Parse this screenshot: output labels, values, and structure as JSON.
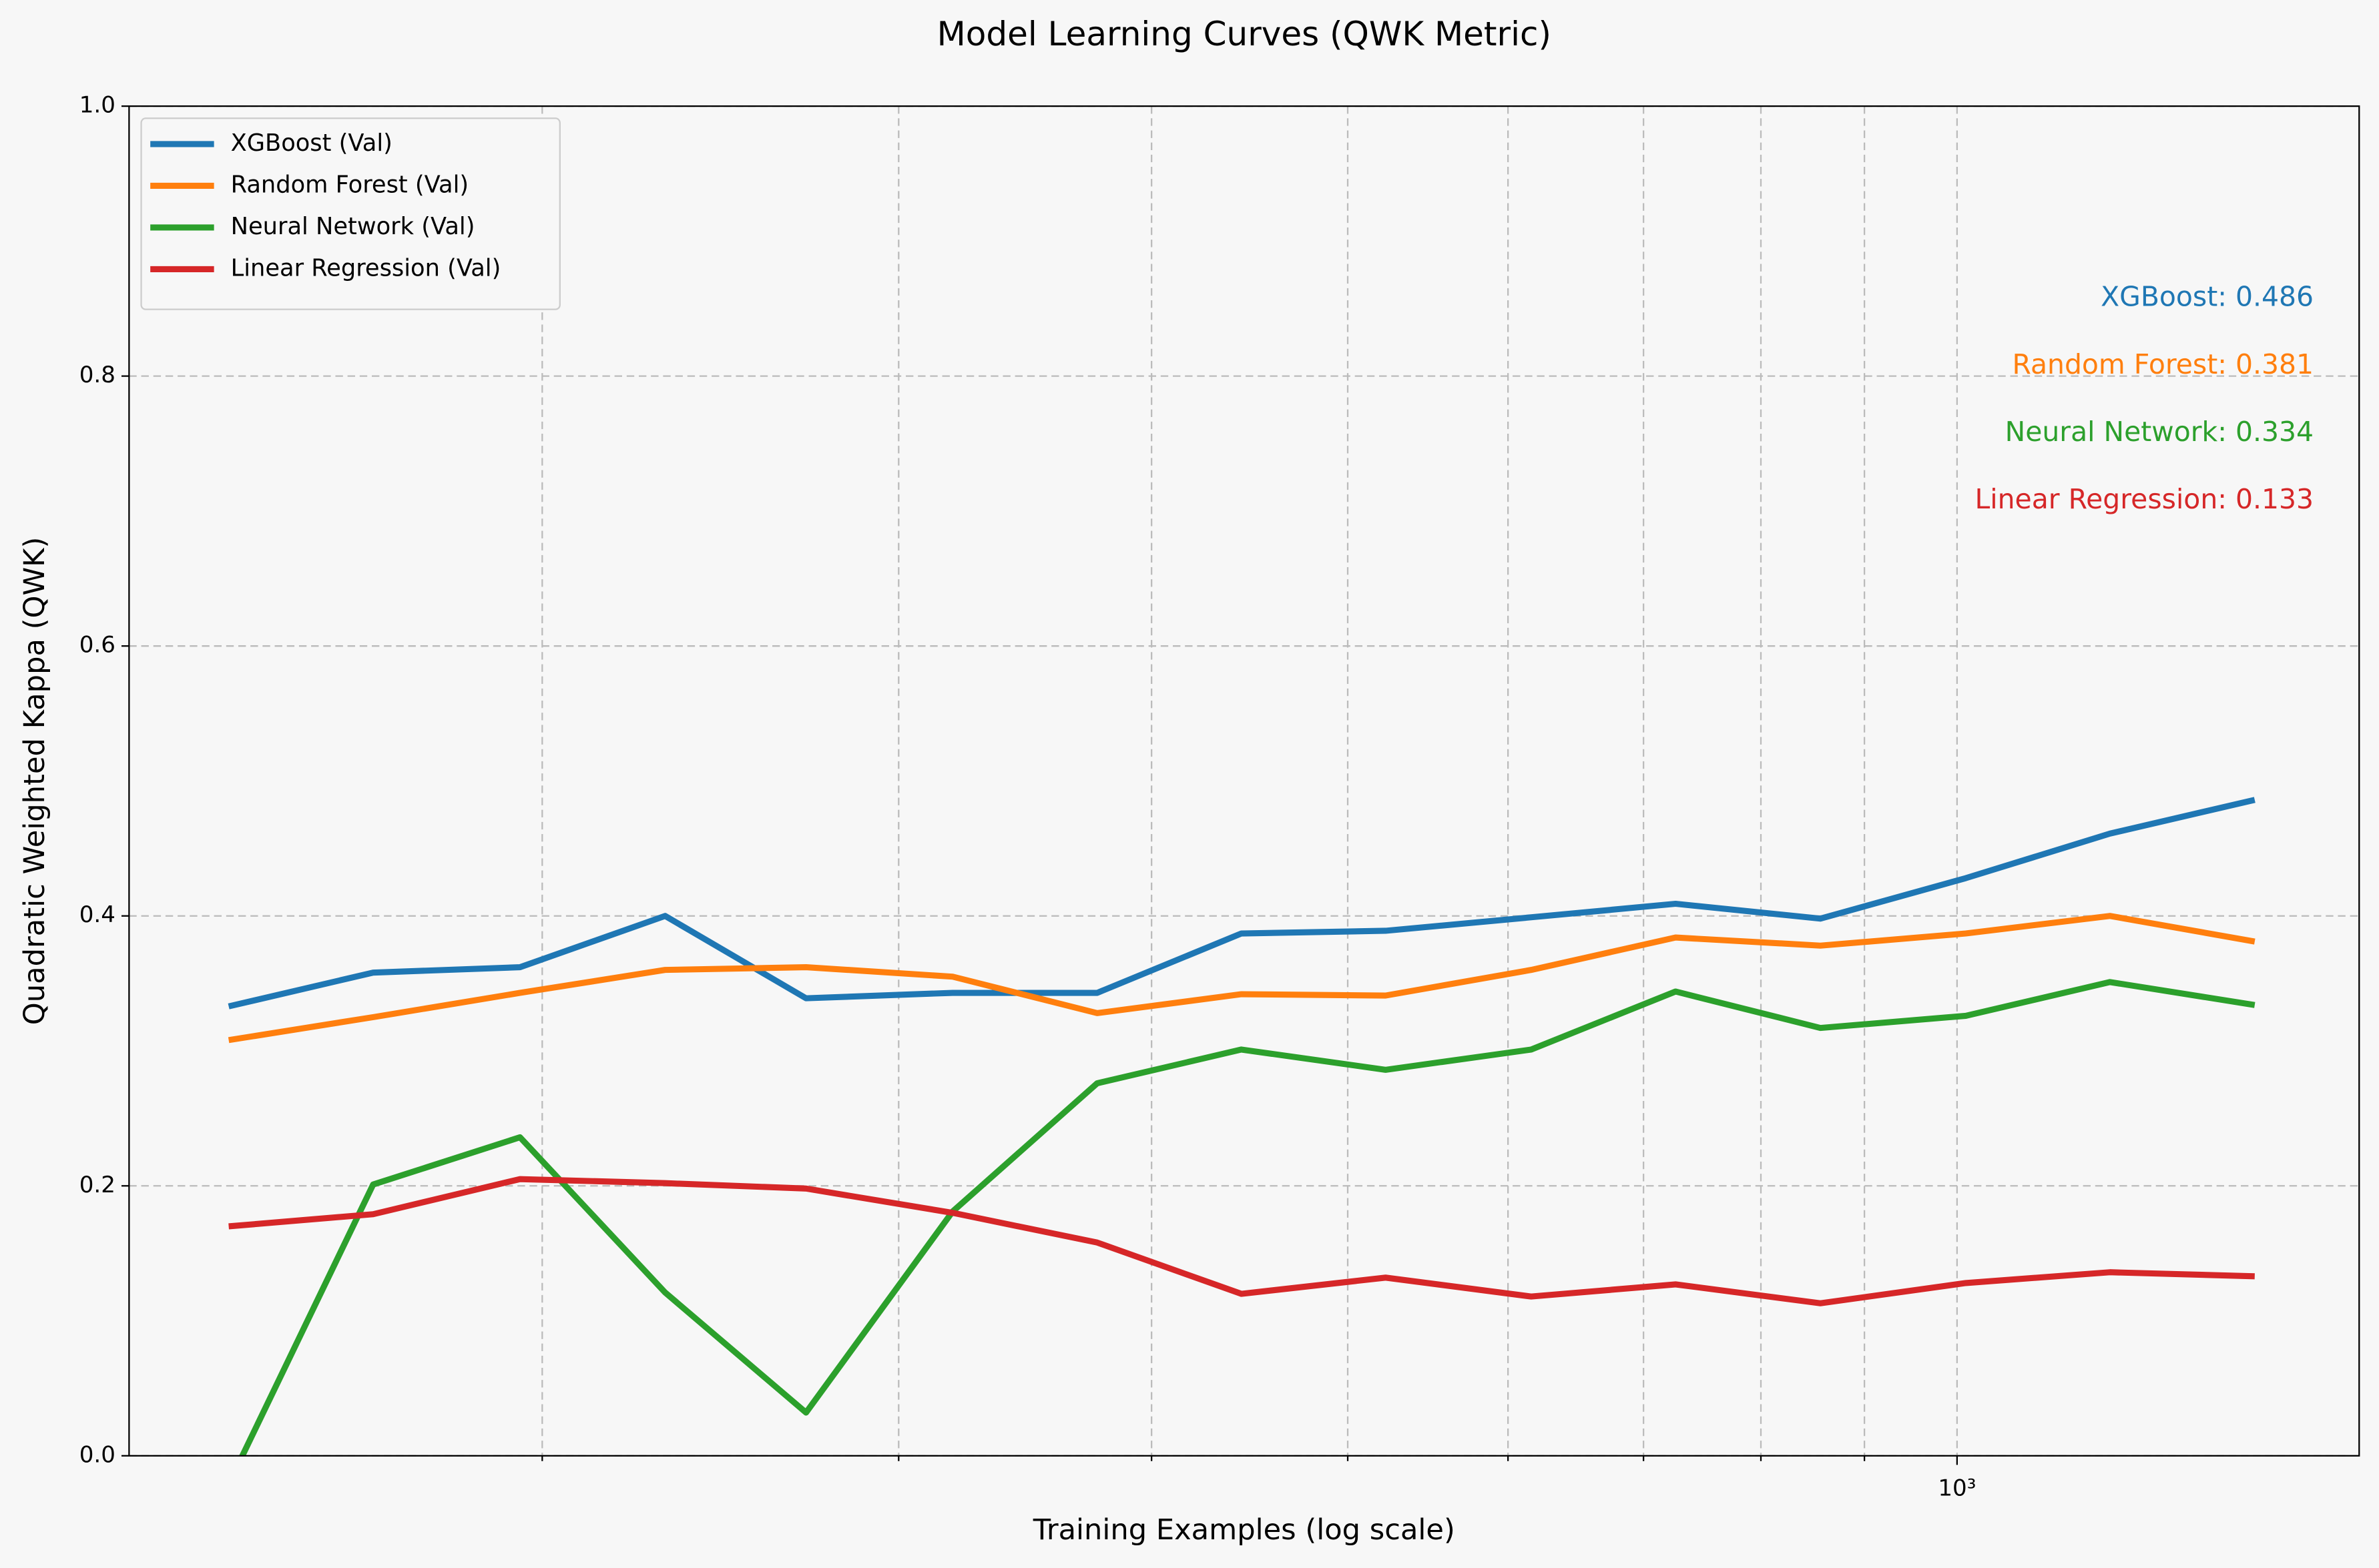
{
  "chart_data": {
    "type": "line",
    "title": "Model Learning Curves (QWK Metric)",
    "xlabel": "Training Examples (log scale)",
    "ylabel": "Quadratic Weighted Kappa (QWK)",
    "xscale": "log",
    "x": [
      140,
      165,
      195,
      230,
      270,
      319,
      376,
      443,
      522,
      616,
      726,
      856,
      1010,
      1190,
      1403
    ],
    "series": [
      {
        "name": "XGBoost (Val)",
        "color": "#1f77b4",
        "values": [
          0.333,
          0.358,
          0.362,
          0.4,
          0.339,
          0.343,
          0.343,
          0.387,
          0.389,
          0.399,
          0.409,
          0.398,
          0.428,
          0.461,
          0.486
        ]
      },
      {
        "name": "Random Forest (Val)",
        "color": "#ff7f0e",
        "values": [
          0.308,
          0.325,
          0.343,
          0.36,
          0.362,
          0.355,
          0.328,
          0.342,
          0.341,
          0.36,
          0.384,
          0.378,
          0.387,
          0.4,
          0.381
        ]
      },
      {
        "name": "Neural Network (Val)",
        "color": "#2ca02c",
        "values": [
          -0.021,
          0.201,
          0.236,
          0.121,
          0.032,
          0.181,
          0.276,
          0.301,
          0.286,
          0.301,
          0.344,
          0.317,
          0.326,
          0.351,
          0.334
        ]
      },
      {
        "name": "Linear Regression (Val)",
        "color": "#d62728",
        "values": [
          0.17,
          0.179,
          0.205,
          0.202,
          0.198,
          0.18,
          0.158,
          0.12,
          0.132,
          0.118,
          0.127,
          0.113,
          0.128,
          0.136,
          0.133
        ]
      }
    ],
    "annotations": [
      {
        "text": "XGBoost: 0.486",
        "color": "#1f77b4"
      },
      {
        "text": "Random Forest: 0.381",
        "color": "#ff7f0e"
      },
      {
        "text": "Neural Network: 0.334",
        "color": "#2ca02c"
      },
      {
        "text": "Linear Regression: 0.133",
        "color": "#d62728"
      }
    ],
    "xlim": [
      125,
      1580
    ],
    "xticks": [
      {
        "value": 1000,
        "label": "10³"
      }
    ],
    "xticks_minor": [
      200,
      300,
      400,
      500,
      600,
      700,
      800,
      900
    ],
    "ylim": [
      0,
      1
    ],
    "yticks": [
      {
        "value": 0,
        "label": "0.0"
      },
      0.2,
      0.4,
      0.6,
      0.8,
      {
        "value": 1,
        "label": "1.0"
      }
    ],
    "grid": true,
    "legend": "upper left"
  }
}
